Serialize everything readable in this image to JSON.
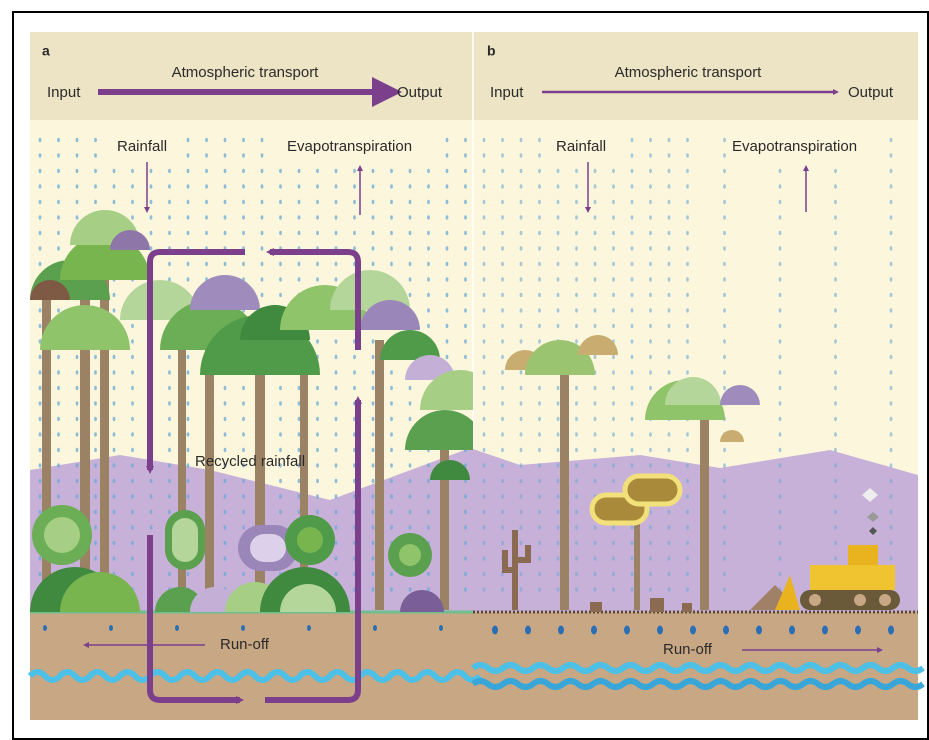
{
  "panels": [
    {
      "label": "a",
      "header": {
        "title": "Atmospheric transport",
        "input": "Input",
        "output": "Output"
      },
      "labels": {
        "rainfall": "Rainfall",
        "evapotranspiration": "Evapotranspiration",
        "recycled": "Recycled rainfall",
        "runoff": "Run-off"
      }
    },
    {
      "label": "b",
      "header": {
        "title": "Atmospheric transport",
        "input": "Input",
        "output": "Output"
      },
      "labels": {
        "rainfall": "Rainfall",
        "evapotranspiration": "Evapotranspiration",
        "runoff": "Run-off"
      }
    }
  ]
}
